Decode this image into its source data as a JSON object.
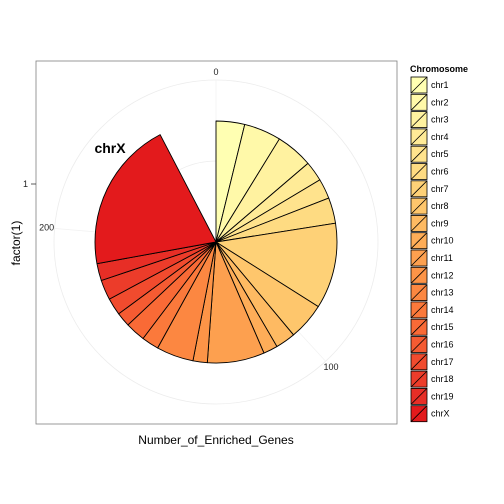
{
  "chart_data": {
    "type": "pie",
    "coord": "polar",
    "xlabel": "Number_of_Enriched_Genes",
    "ylabel": "factor(1)",
    "x_ticks": [
      "1"
    ],
    "theta_ticks": [
      0,
      100,
      200
    ],
    "theta_max": 262,
    "annotation": "chrX",
    "legend": {
      "title": "Chromosome",
      "position": "right"
    },
    "categories": [
      "chr1",
      "chr2",
      "chr3",
      "chr4",
      "chr5",
      "chr6",
      "chr7",
      "chr8",
      "chr9",
      "chr10",
      "chr11",
      "chr12",
      "chr13",
      "chr14",
      "chr15",
      "chr16",
      "chr17",
      "chr18",
      "chr19",
      "chrX"
    ],
    "values": [
      10,
      13,
      13,
      7,
      7,
      9,
      30,
      13,
      7,
      5,
      20,
      5,
      13,
      6,
      7,
      5,
      6,
      7,
      6,
      53
    ],
    "colors": [
      "#FFFFB2",
      "#FFF9A9",
      "#FFF2A0",
      "#FFEB97",
      "#FFE38D",
      "#FEDB82",
      "#FED177",
      "#FEC66C",
      "#FEBA62",
      "#FEAD58",
      "#FDA04F",
      "#FD9447",
      "#FC8741",
      "#FB793B",
      "#F96A36",
      "#F55B32",
      "#F14B2E",
      "#EC3C2A",
      "#E72E26",
      "#E31A1C"
    ],
    "grid": true
  }
}
